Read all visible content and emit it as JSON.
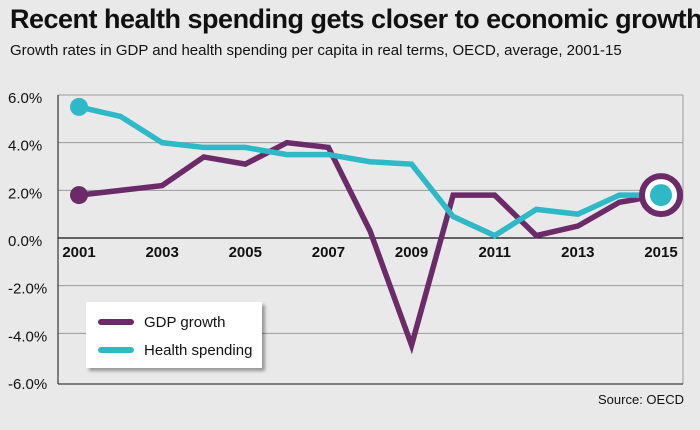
{
  "chart_data": {
    "type": "line",
    "title": "Recent health spending gets closer to economic growth",
    "subtitle": "Growth rates in GDP and health spending per capita in real terms, OECD, average, 2001-15",
    "x": [
      2001,
      2002,
      2003,
      2004,
      2005,
      2006,
      2007,
      2008,
      2009,
      2010,
      2011,
      2012,
      2013,
      2014,
      2015
    ],
    "x_tick_labels": [
      "2001",
      "2003",
      "2005",
      "2007",
      "2009",
      "2011",
      "2013",
      "2015"
    ],
    "x_tick_values": [
      2001,
      2003,
      2005,
      2007,
      2009,
      2011,
      2013,
      2015
    ],
    "y_tick_labels": [
      "6.0%",
      "4.0%",
      "2.0%",
      "0.0%",
      "-2.0%",
      "-4.0%",
      "-6.0%"
    ],
    "y_tick_values": [
      6,
      4,
      2,
      0,
      -2,
      -4,
      -6
    ],
    "ylim": [
      -6,
      6
    ],
    "xlim": [
      2001,
      2015
    ],
    "grid": "horizontal",
    "legend_placement": "bottom-left",
    "series": [
      {
        "name": "GDP growth",
        "color": "#6b2a68",
        "values": [
          1.8,
          2.0,
          2.2,
          3.4,
          3.1,
          4.0,
          3.8,
          0.3,
          -4.5,
          1.8,
          1.8,
          0.1,
          0.5,
          1.5,
          1.8
        ]
      },
      {
        "name": "Health spending",
        "color": "#2fb8c6",
        "values": [
          5.5,
          5.1,
          4.0,
          3.8,
          3.8,
          3.5,
          3.5,
          3.2,
          3.1,
          0.9,
          0.1,
          1.2,
          1.0,
          1.8,
          1.8
        ]
      }
    ],
    "source": "Source: OECD"
  }
}
